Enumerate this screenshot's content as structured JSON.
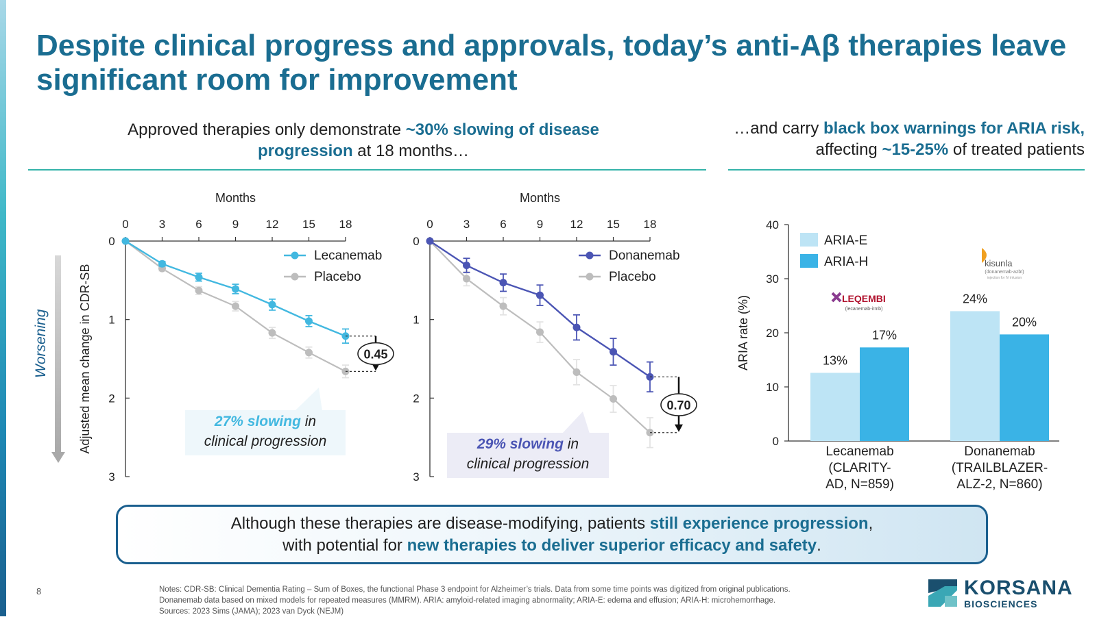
{
  "title": "Despite clinical progress and approvals, today’s anti-Aβ therapies leave significant room for improvement",
  "left_header": {
    "part1": "Approved therapies only demonstrate ",
    "highlight1": "~30% slowing of disease progression",
    "part2": " at 18 months…"
  },
  "right_header": {
    "part1": "…and carry ",
    "highlight1": "black box warnings for ARIA risk,",
    "part2": " affecting ",
    "highlight2": "~15-25%",
    "part3": " of treated patients"
  },
  "worsening_label": "Worsening",
  "colors": {
    "title": "#1a6d91",
    "lecanemab": "#42b8e0",
    "donanemab": "#4b55b4",
    "placebo": "#bdbdbd",
    "aria_e": "#bde4f5",
    "aria_h": "#3ab3e6",
    "accent_rule": "#34b3a9"
  },
  "chart_data": [
    {
      "type": "line",
      "xlabel": "Months",
      "ylabel": "Adjusted mean change in CDR-SB",
      "x": [
        0,
        3,
        6,
        9,
        12,
        15,
        18
      ],
      "xticks": [
        "0",
        "3",
        "6",
        "9",
        "12",
        "15",
        "18"
      ],
      "yticks": [
        "0",
        "1",
        "2",
        "3"
      ],
      "ylim": [
        0,
        3
      ],
      "y_inverted": true,
      "series": [
        {
          "name": "Lecanemab",
          "values": [
            0,
            0.29,
            0.46,
            0.61,
            0.81,
            1.02,
            1.21
          ],
          "err": [
            0,
            0.03,
            0.05,
            0.06,
            0.07,
            0.07,
            0.09
          ]
        },
        {
          "name": "Placebo",
          "values": [
            0,
            0.35,
            0.63,
            0.83,
            1.17,
            1.42,
            1.66
          ],
          "err": [
            0,
            0.03,
            0.05,
            0.06,
            0.07,
            0.07,
            0.08
          ]
        }
      ],
      "difference_label": "0.45",
      "callout": {
        "highlight": "27% slowing",
        "rest": " in",
        "line2": "clinical progression"
      }
    },
    {
      "type": "line",
      "xlabel": "Months",
      "x": [
        0,
        3,
        6,
        9,
        12,
        15,
        18
      ],
      "xticks": [
        "0",
        "3",
        "6",
        "9",
        "12",
        "15",
        "18"
      ],
      "yticks": [
        "0",
        "1",
        "2",
        "3"
      ],
      "ylim": [
        0,
        3
      ],
      "y_inverted": true,
      "series": [
        {
          "name": "Donanemab",
          "values": [
            0,
            0.31,
            0.53,
            0.69,
            1.1,
            1.41,
            1.73
          ],
          "err": [
            0,
            0.09,
            0.11,
            0.13,
            0.16,
            0.17,
            0.19
          ]
        },
        {
          "name": "Placebo",
          "values": [
            0,
            0.48,
            0.83,
            1.16,
            1.67,
            2.01,
            2.44
          ],
          "err": [
            0,
            0.09,
            0.11,
            0.13,
            0.16,
            0.17,
            0.19
          ]
        }
      ],
      "difference_label": "0.70",
      "callout": {
        "highlight": "29% slowing",
        "rest": " in",
        "line2": "clinical progression"
      }
    },
    {
      "type": "bar",
      "ylabel": "ARIA rate (%)",
      "ylim": [
        0,
        40
      ],
      "yticks": [
        "0",
        "10",
        "20",
        "30",
        "40"
      ],
      "categories": [
        "Lecanemab (CLARITY-AD, N=859)",
        "Donanemab (TRAILBLAZER-ALZ-2, N=860)"
      ],
      "category_lines": [
        [
          "Lecanemab",
          "(CLARITY-",
          "AD, N=859)"
        ],
        [
          "Donanemab",
          "(TRAILBLAZER-",
          "ALZ-2, N=860)"
        ]
      ],
      "series": [
        {
          "name": "ARIA-E",
          "values": [
            12.6,
            24
          ],
          "labels": [
            "13%",
            "24%"
          ]
        },
        {
          "name": "ARIA-H",
          "values": [
            17.3,
            19.7
          ],
          "labels": [
            "17%",
            "20%"
          ]
        }
      ],
      "logos": [
        {
          "name": "LEQEMBI",
          "sub": "(lecanemab-irmb)"
        },
        {
          "name": "kisunla",
          "sub": "(donanemab-azbt)",
          "sub2": "injection for IV infusion"
        }
      ]
    }
  ],
  "bottom_box": {
    "line1_part1": "Although these therapies are disease-modifying, patients ",
    "line1_highlight": "still experience progression",
    "line1_part2": ",",
    "line2_part1": "with potential for ",
    "line2_highlight": "new therapies to deliver superior efficacy and safety",
    "line2_part2": "."
  },
  "footer": {
    "page_number": "8",
    "notes_line1": "Notes: CDR-SB: Clinical Dementia Rating – Sum of Boxes, the functional Phase 3 endpoint for Alzheimer’s trials. Data from some time points was digitized from original publications.",
    "notes_line2": "Donanemab data based on mixed models for repeated measures (MMRM). ARIA: amyloid-related imaging abnormality; ARIA-E: edema and effusion; ARIA-H: microhemorrhage.",
    "notes_line3": "Sources: 2023 Sims (JAMA); 2023 van Dyck (NEJM)"
  },
  "brand": {
    "name": "KORSANA",
    "sub": "BIOSCIENCES"
  }
}
